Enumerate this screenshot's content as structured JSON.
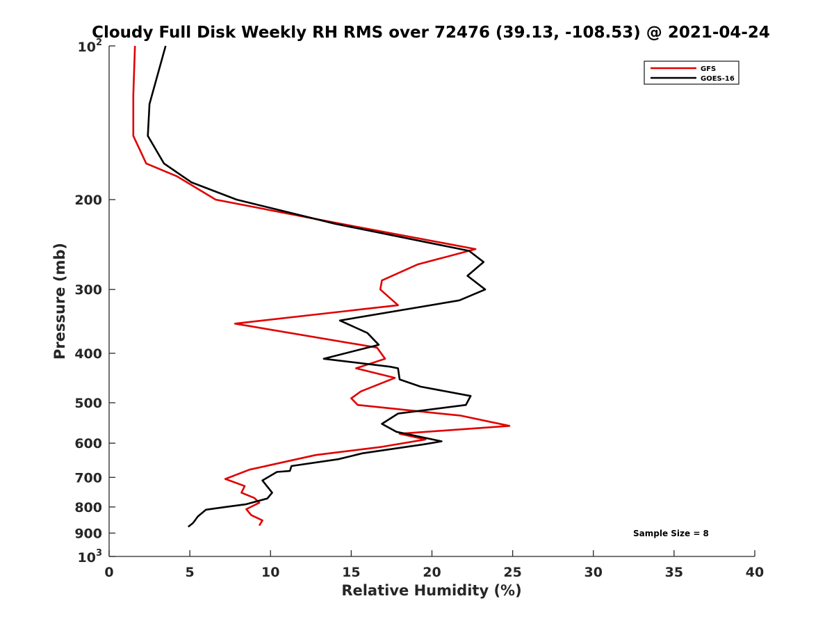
{
  "chart_data": {
    "type": "line",
    "title": "Cloudy Full Disk Weekly RH RMS over 72476 (39.13, -108.53) @ 2021-04-24",
    "xlabel": "Relative Humidity (%)",
    "ylabel": "Pressure (mb)",
    "xlim": [
      0,
      40
    ],
    "ylim": [
      1000,
      100
    ],
    "y_scale": "log",
    "y_reversed": true,
    "grid": false,
    "legend_position": "top-right",
    "x_ticks": [
      "0",
      "5",
      "10",
      "15",
      "20",
      "25",
      "30",
      "35",
      "40"
    ],
    "y_ticks": [
      {
        "value": 100,
        "base": "10",
        "exp": "2"
      },
      {
        "value": 200,
        "label": "200"
      },
      {
        "value": 300,
        "label": "300"
      },
      {
        "value": 400,
        "label": "400"
      },
      {
        "value": 500,
        "label": "500"
      },
      {
        "value": 600,
        "label": "600"
      },
      {
        "value": 700,
        "label": "700"
      },
      {
        "value": 800,
        "label": "800"
      },
      {
        "value": 900,
        "label": "900"
      },
      {
        "value": 1000,
        "base": "10",
        "exp": "3"
      }
    ],
    "annotation": "Sample Size = 8",
    "series": [
      {
        "name": "GFS",
        "color": "#e00000",
        "points": [
          [
            1.6,
            100
          ],
          [
            1.5,
            125
          ],
          [
            1.5,
            150
          ],
          [
            2.3,
            170
          ],
          [
            4.2,
            180
          ],
          [
            6.6,
            200
          ],
          [
            14.0,
            222
          ],
          [
            22.7,
            250
          ],
          [
            19.1,
            268
          ],
          [
            16.9,
            288
          ],
          [
            16.8,
            300
          ],
          [
            17.9,
            322
          ],
          [
            7.8,
            350
          ],
          [
            16.6,
            390
          ],
          [
            17.1,
            410
          ],
          [
            15.3,
            428
          ],
          [
            17.7,
            447
          ],
          [
            15.6,
            475
          ],
          [
            15.0,
            490
          ],
          [
            15.4,
            505
          ],
          [
            21.8,
            530
          ],
          [
            24.8,
            555
          ],
          [
            18.0,
            575
          ],
          [
            19.6,
            590
          ],
          [
            16.9,
            610
          ],
          [
            12.8,
            633
          ],
          [
            8.7,
            676
          ],
          [
            7.2,
            705
          ],
          [
            8.4,
            728
          ],
          [
            8.2,
            750
          ],
          [
            9.0,
            768
          ],
          [
            9.3,
            785
          ],
          [
            8.5,
            808
          ],
          [
            8.8,
            830
          ],
          [
            9.5,
            850
          ],
          [
            9.3,
            870
          ]
        ]
      },
      {
        "name": "GOES-16",
        "color": "#000000",
        "points": [
          [
            3.5,
            100
          ],
          [
            2.5,
            130
          ],
          [
            2.4,
            150
          ],
          [
            3.4,
            170
          ],
          [
            5.1,
            185
          ],
          [
            7.9,
            200
          ],
          [
            14.0,
            223
          ],
          [
            22.3,
            252
          ],
          [
            23.2,
            265
          ],
          [
            22.2,
            282
          ],
          [
            23.3,
            300
          ],
          [
            21.7,
            315
          ],
          [
            14.3,
            345
          ],
          [
            16.0,
            365
          ],
          [
            16.7,
            385
          ],
          [
            13.3,
            410
          ],
          [
            17.4,
            425
          ],
          [
            17.9,
            428
          ],
          [
            18.0,
            450
          ],
          [
            19.3,
            465
          ],
          [
            22.4,
            485
          ],
          [
            22.1,
            505
          ],
          [
            17.9,
            525
          ],
          [
            16.9,
            550
          ],
          [
            17.8,
            570
          ],
          [
            20.6,
            595
          ],
          [
            19.5,
            603
          ],
          [
            15.7,
            628
          ],
          [
            14.2,
            645
          ],
          [
            11.3,
            665
          ],
          [
            11.2,
            680
          ],
          [
            10.4,
            683
          ],
          [
            9.5,
            710
          ],
          [
            10.1,
            750
          ],
          [
            9.8,
            770
          ],
          [
            8.5,
            790
          ],
          [
            7.2,
            800
          ],
          [
            6.0,
            810
          ],
          [
            5.5,
            835
          ],
          [
            5.2,
            860
          ],
          [
            4.9,
            875
          ]
        ]
      }
    ]
  }
}
